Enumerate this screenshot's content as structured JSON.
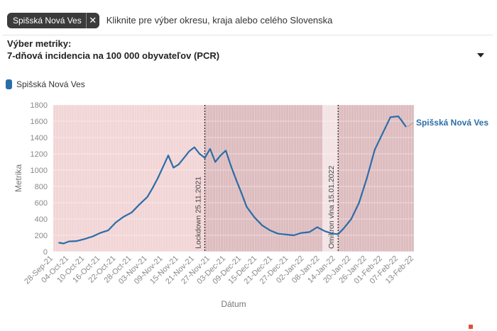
{
  "search": {
    "chip_label": "Spišská Nová Ves",
    "chip_remove": "✕",
    "placeholder": "Kliknite pre výber okresu, kraja alebo celého Slovenska"
  },
  "metric": {
    "label": "Výber metriky:",
    "selected": "7-dňová incidencia na 100 000 obyvateľov (PCR)"
  },
  "colors": {
    "line": "#2b6da8",
    "band_light": "#f2d5d6",
    "band_dark": "#ddbcbf",
    "band_gap": "#f3e3e4"
  },
  "chart_data": {
    "type": "line",
    "xlabel": "Dátum",
    "ylabel": "Metrika",
    "ylim": [
      0,
      1800
    ],
    "yticks": [
      0,
      200,
      400,
      600,
      800,
      1000,
      1200,
      1400,
      1600,
      1800
    ],
    "xticks": [
      "28-Sep-21",
      "04-Oct-21",
      "10-Oct-21",
      "16-Oct-21",
      "22-Oct-21",
      "28-Oct-21",
      "03-Nov-21",
      "09-Nov-21",
      "15-Nov-21",
      "21-Nov-21",
      "27-Nov-21",
      "03-Dec-21",
      "09-Dec-21",
      "15-Dec-21",
      "21-Dec-21",
      "27-Dec-21",
      "02-Jan-22",
      "08-Jan-22",
      "14-Jan-22",
      "20-Jan-22",
      "26-Jan-22",
      "01-Feb-22",
      "07-Feb-22",
      "13-Feb-22"
    ],
    "legend": [
      "Spišská Nová Ves"
    ],
    "legend_position": "top-left",
    "series": [
      {
        "name": "Spišská Nová Ves",
        "x": [
          "2021-09-30",
          "2021-10-02",
          "2021-10-04",
          "2021-10-07",
          "2021-10-10",
          "2021-10-13",
          "2021-10-16",
          "2021-10-19",
          "2021-10-22",
          "2021-10-25",
          "2021-10-28",
          "2021-10-31",
          "2021-11-03",
          "2021-11-05",
          "2021-11-07",
          "2021-11-09",
          "2021-11-11",
          "2021-11-13",
          "2021-11-15",
          "2021-11-17",
          "2021-11-19",
          "2021-11-21",
          "2021-11-23",
          "2021-11-25",
          "2021-11-27",
          "2021-11-29",
          "2021-12-01",
          "2021-12-03",
          "2021-12-05",
          "2021-12-07",
          "2021-12-09",
          "2021-12-11",
          "2021-12-14",
          "2021-12-17",
          "2021-12-20",
          "2021-12-23",
          "2021-12-26",
          "2021-12-29",
          "2022-01-01",
          "2022-01-04",
          "2022-01-07",
          "2022-01-10",
          "2022-01-13",
          "2022-01-15",
          "2022-01-17",
          "2022-01-20",
          "2022-01-23",
          "2022-01-26",
          "2022-01-29",
          "2022-02-01",
          "2022-02-04",
          "2022-02-07",
          "2022-02-08",
          "2022-02-10"
        ],
        "values": [
          110,
          100,
          125,
          130,
          155,
          185,
          230,
          260,
          360,
          430,
          480,
          580,
          670,
          780,
          900,
          1040,
          1180,
          1030,
          1070,
          1150,
          1230,
          1280,
          1200,
          1150,
          1260,
          1100,
          1180,
          1240,
          1050,
          880,
          720,
          550,
          420,
          320,
          260,
          220,
          210,
          200,
          230,
          240,
          300,
          250,
          220,
          215,
          280,
          400,
          600,
          900,
          1250,
          1450,
          1650,
          1660,
          1620,
          1530
        ]
      }
    ],
    "annotations": [
      {
        "date": "2021-11-25",
        "text": "Lockdown 25.11.2021"
      },
      {
        "date": "2022-01-15",
        "text": "Omikron vlna 15.01.2022"
      }
    ],
    "end_label": "Spišská Nová Ves"
  }
}
